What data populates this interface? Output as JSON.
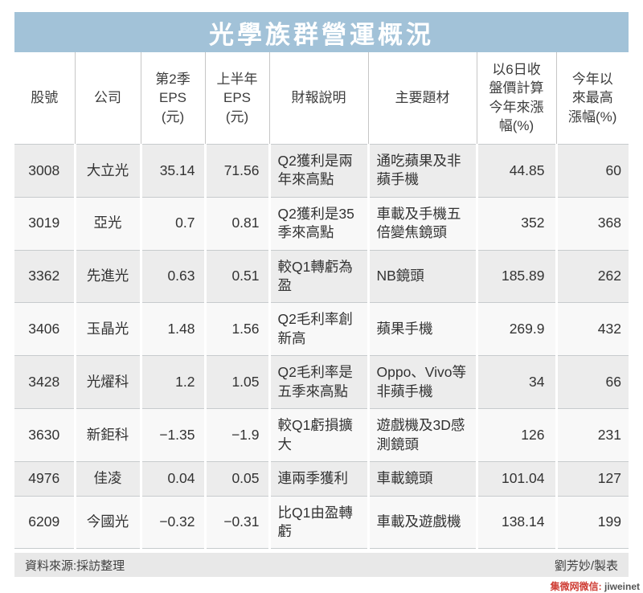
{
  "title": "光學族群營運概況",
  "colors": {
    "title_bg": "#a2c2d8",
    "title_text": "#ffffff",
    "stripe_odd": "#ececec",
    "stripe_even": "#f8f8f8",
    "footer_bg": "#e8e8e8",
    "watermark_red": "#cf3d34"
  },
  "table": {
    "headers": [
      "股號",
      "公司",
      "第2季\nEPS\n(元)",
      "上半年\nEPS\n(元)",
      "財報說明",
      "主要題材",
      "以6日收\n盤價計算\n今年來漲\n幅(%)",
      "今年以\n來最高\n漲幅(%)"
    ],
    "rows": [
      [
        "3008",
        "大立光",
        "35.14",
        "71.56",
        "Q2獲利是兩年來高點",
        "通吃蘋果及非蘋手機",
        "44.85",
        "60"
      ],
      [
        "3019",
        "亞光",
        "0.7",
        "0.81",
        "Q2獲利是35季來高點",
        "車載及手機五倍變焦鏡頭",
        "352",
        "368"
      ],
      [
        "3362",
        "先進光",
        "0.63",
        "0.51",
        "較Q1轉虧為盈",
        "NB鏡頭",
        "185.89",
        "262"
      ],
      [
        "3406",
        "玉晶光",
        "1.48",
        "1.56",
        "Q2毛利率創新高",
        "蘋果手機",
        "269.9",
        "432"
      ],
      [
        "3428",
        "光燿科",
        "1.2",
        "1.05",
        "Q2毛利率是五季來高點",
        "Oppo、Vivo等非蘋手機",
        "34",
        "66"
      ],
      [
        "3630",
        "新鉅科",
        "−1.35",
        "−1.9",
        "較Q1虧損擴大",
        "遊戲機及3D感測鏡頭",
        "126",
        "231"
      ],
      [
        "4976",
        "佳凌",
        "0.04",
        "0.05",
        "連兩季獲利",
        "車載鏡頭",
        "101.04",
        "127"
      ],
      [
        "6209",
        "今國光",
        "−0.32",
        "−0.31",
        "比Q1由盈轉虧",
        "車載及遊戲機",
        "138.14",
        "199"
      ]
    ]
  },
  "footer": {
    "source": "資料來源:採訪整理",
    "credit": "劉芳妙/製表"
  },
  "watermark": {
    "label": "集微网微信:",
    "value": "jiweinet"
  }
}
